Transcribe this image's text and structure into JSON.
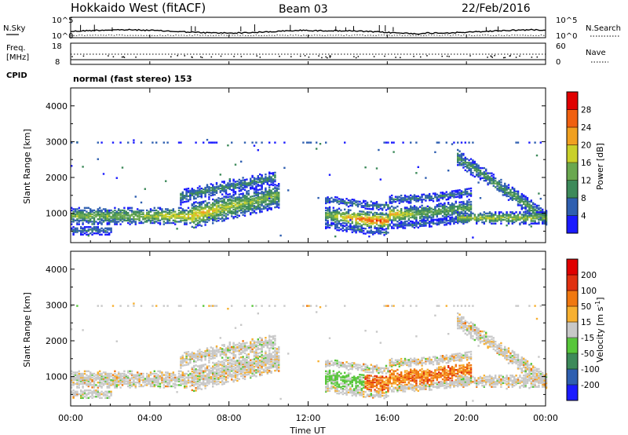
{
  "header": {
    "title": "Hokkaido West (fitACF)",
    "beam": "Beam 03",
    "date": "22/Feb/2016"
  },
  "panels": {
    "noise": {
      "left_label": "N.Sky",
      "right_label": "N.Search",
      "left_ticks": [
        "10^5",
        "10^0"
      ],
      "right_ticks": [
        "10^5",
        "10^0"
      ]
    },
    "freq": {
      "left_label_1": "Freq.",
      "left_label_2": "[MHz]",
      "right_label": "Nave",
      "left_ticks": [
        "18",
        "8"
      ],
      "right_ticks": [
        "60",
        "0"
      ]
    },
    "cpid": {
      "label": "CPID",
      "mode": "normal (fast stereo) 153"
    }
  },
  "colors": {
    "power_scale": [
      "#1a1aff",
      "#2f5fb0",
      "#3d8a5a",
      "#6aa84f",
      "#c9d02a",
      "#f0a020",
      "#f06010",
      "#e00000"
    ],
    "velocity_scale": [
      "#1a1aff",
      "#2f5fb0",
      "#3d8a5a",
      "#57c63a",
      "#c8c8c8",
      "#f7b030",
      "#f07810",
      "#e03010",
      "#e00000"
    ]
  },
  "chart_data": [
    {
      "type": "heatmap",
      "name": "power",
      "ylabel": "Slant Range [km]",
      "y_ticks": [
        "4000",
        "3000",
        "2000",
        "1000"
      ],
      "ylim": [
        180,
        4500
      ],
      "colorbar_label": "Power [dB]",
      "colorbar_ticks": [
        "28",
        "24",
        "20",
        "16",
        "12",
        "8",
        "4"
      ],
      "colorbar_range": [
        0,
        30
      ]
    },
    {
      "type": "heatmap",
      "name": "velocity",
      "ylabel": "Slant Range [km]",
      "y_ticks": [
        "4000",
        "3000",
        "2000",
        "1000"
      ],
      "ylim": [
        180,
        4500
      ],
      "colorbar_label": "Velocity [m s",
      "colorbar_label_sup": "-1",
      "colorbar_label_end": "]",
      "colorbar_ticks": [
        "200",
        "100",
        "50",
        "15",
        "-15",
        "-50",
        "-100",
        "-200"
      ]
    }
  ],
  "x_axis": {
    "label": "Time UT",
    "ticks": [
      "00:00",
      "04:00",
      "08:00",
      "12:00",
      "16:00",
      "20:00",
      "00:00"
    ]
  }
}
